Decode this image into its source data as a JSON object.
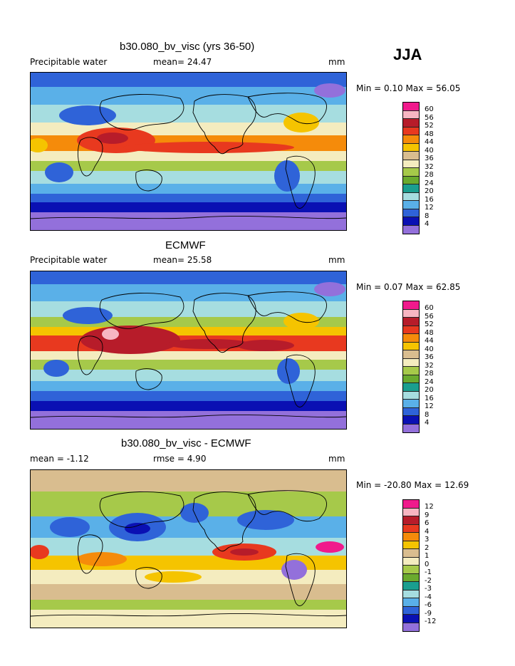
{
  "season": "JJA",
  "panels": [
    {
      "title": "b30.080_bv_visc (yrs 36-50)",
      "left_label": "Precipitable water",
      "center_label": "mean=  24.47",
      "unit": "mm",
      "minmax": "Min =   0.10 Max =  56.05"
    },
    {
      "title": "ECMWF",
      "left_label": "Precipitable water",
      "center_label": "mean=  25.58",
      "unit": "mm",
      "minmax": "Min =   0.07 Max =  62.85"
    },
    {
      "title": "b30.080_bv_visc - ECMWF",
      "left_label": "mean =   -1.12",
      "center_label": "rmse =    4.90",
      "unit": "mm",
      "minmax": "Min = -20.80 Max =  12.69"
    }
  ],
  "colorbar_abs": {
    "labels": [
      "60",
      "56",
      "52",
      "48",
      "44",
      "40",
      "36",
      "32",
      "28",
      "24",
      "20",
      "16",
      "12",
      "8",
      "4"
    ],
    "colors": [
      "#f01a8c",
      "#f7b6c2",
      "#b71c2a",
      "#e8391f",
      "#f58b0a",
      "#f5c400",
      "#d9bd8f",
      "#f4ecbf",
      "#a6c94a",
      "#6aaa2e",
      "#1a9e8f",
      "#a6dde0",
      "#5ab0e8",
      "#2f63d8",
      "#0a10b3",
      "#9370db"
    ]
  },
  "colorbar_diff": {
    "labels": [
      "12",
      "9",
      "6",
      "4",
      "3",
      "2",
      "1",
      "0",
      "-1",
      "-2",
      "-3",
      "-4",
      "-6",
      "-9",
      "-12"
    ],
    "colors": [
      "#f01a8c",
      "#f7b6c2",
      "#b71c2a",
      "#e8391f",
      "#f58b0a",
      "#f5c400",
      "#d9bd8f",
      "#f4ecbf",
      "#a6c94a",
      "#6aaa2e",
      "#1a9e8f",
      "#a6dde0",
      "#5ab0e8",
      "#2f63d8",
      "#0a10b3",
      "#9370db"
    ]
  }
}
